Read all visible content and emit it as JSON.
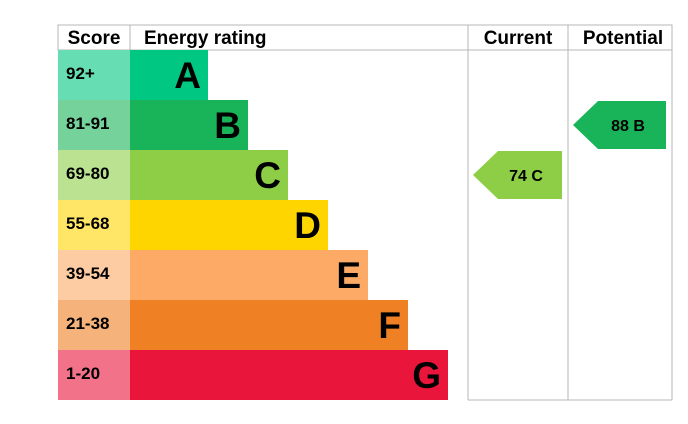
{
  "chart_data": {
    "type": "bar",
    "headers": {
      "score": "Score",
      "rating": "Energy rating",
      "current": "Current",
      "potential": "Potential"
    },
    "bands": [
      {
        "score": "92+",
        "letter": "A",
        "color": "#00c781"
      },
      {
        "score": "81-91",
        "letter": "B",
        "color": "#19b459"
      },
      {
        "score": "69-80",
        "letter": "C",
        "color": "#8dce46"
      },
      {
        "score": "55-68",
        "letter": "D",
        "color": "#ffd500"
      },
      {
        "score": "39-54",
        "letter": "E",
        "color": "#fcaa65"
      },
      {
        "score": "21-38",
        "letter": "F",
        "color": "#ef8023"
      },
      {
        "score": "1-20",
        "letter": "G",
        "color": "#e9153b"
      }
    ],
    "current": {
      "value": 74,
      "band": "C",
      "label": "74 C",
      "color": "#8dce46"
    },
    "potential": {
      "value": 88,
      "band": "B",
      "label": "88 B",
      "color": "#19b459"
    }
  }
}
